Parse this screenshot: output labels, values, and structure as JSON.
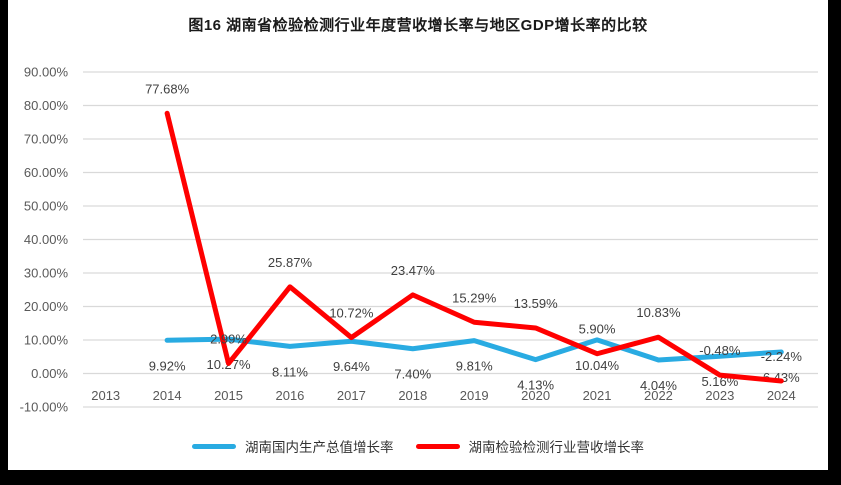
{
  "window": {
    "background_color": "#000000",
    "card_background_color": "#FFFFFF"
  },
  "chart": {
    "title": "图16  湖南省检验检测行业年度营收增长率与地区GDP增长率的比较"
  },
  "chart_data": {
    "type": "line",
    "title": "图16  湖南省检验检测行业年度营收增长率与地区GDP增长率的比较",
    "xlabel": "",
    "ylabel": "",
    "x_categories": [
      "2013",
      "2014",
      "2015",
      "2016",
      "2017",
      "2018",
      "2019",
      "2020",
      "2021",
      "2022",
      "2023",
      "2024"
    ],
    "series": [
      {
        "name": "湖南国内生产总值增长率",
        "color": "#29ABE2",
        "label_position": "below",
        "values": [
          null,
          9.92,
          10.27,
          8.11,
          9.64,
          7.4,
          9.81,
          4.13,
          10.04,
          4.04,
          5.16,
          6.43
        ]
      },
      {
        "name": "湖南检验检测行业营收增长率",
        "color": "#FF0000",
        "label_position": "above",
        "values": [
          null,
          77.68,
          2.99,
          25.87,
          10.72,
          23.47,
          15.29,
          13.59,
          5.9,
          10.83,
          -0.48,
          -2.24
        ]
      }
    ],
    "ylim": [
      -10,
      90
    ],
    "ytick_step": 10,
    "ytick_labels": [
      "90.00%",
      "80.00%",
      "70.00%",
      "60.00%",
      "50.00%",
      "40.00%",
      "30.00%",
      "20.00%",
      "10.00%",
      "0.00%",
      "-10.00%"
    ],
    "data_label_format": "0.00%",
    "grid": "horizontal",
    "gridline_color": "#D9D9D9",
    "axis_text_color": "#595959",
    "data_label_color": "#404040",
    "legend_position": "bottom"
  }
}
